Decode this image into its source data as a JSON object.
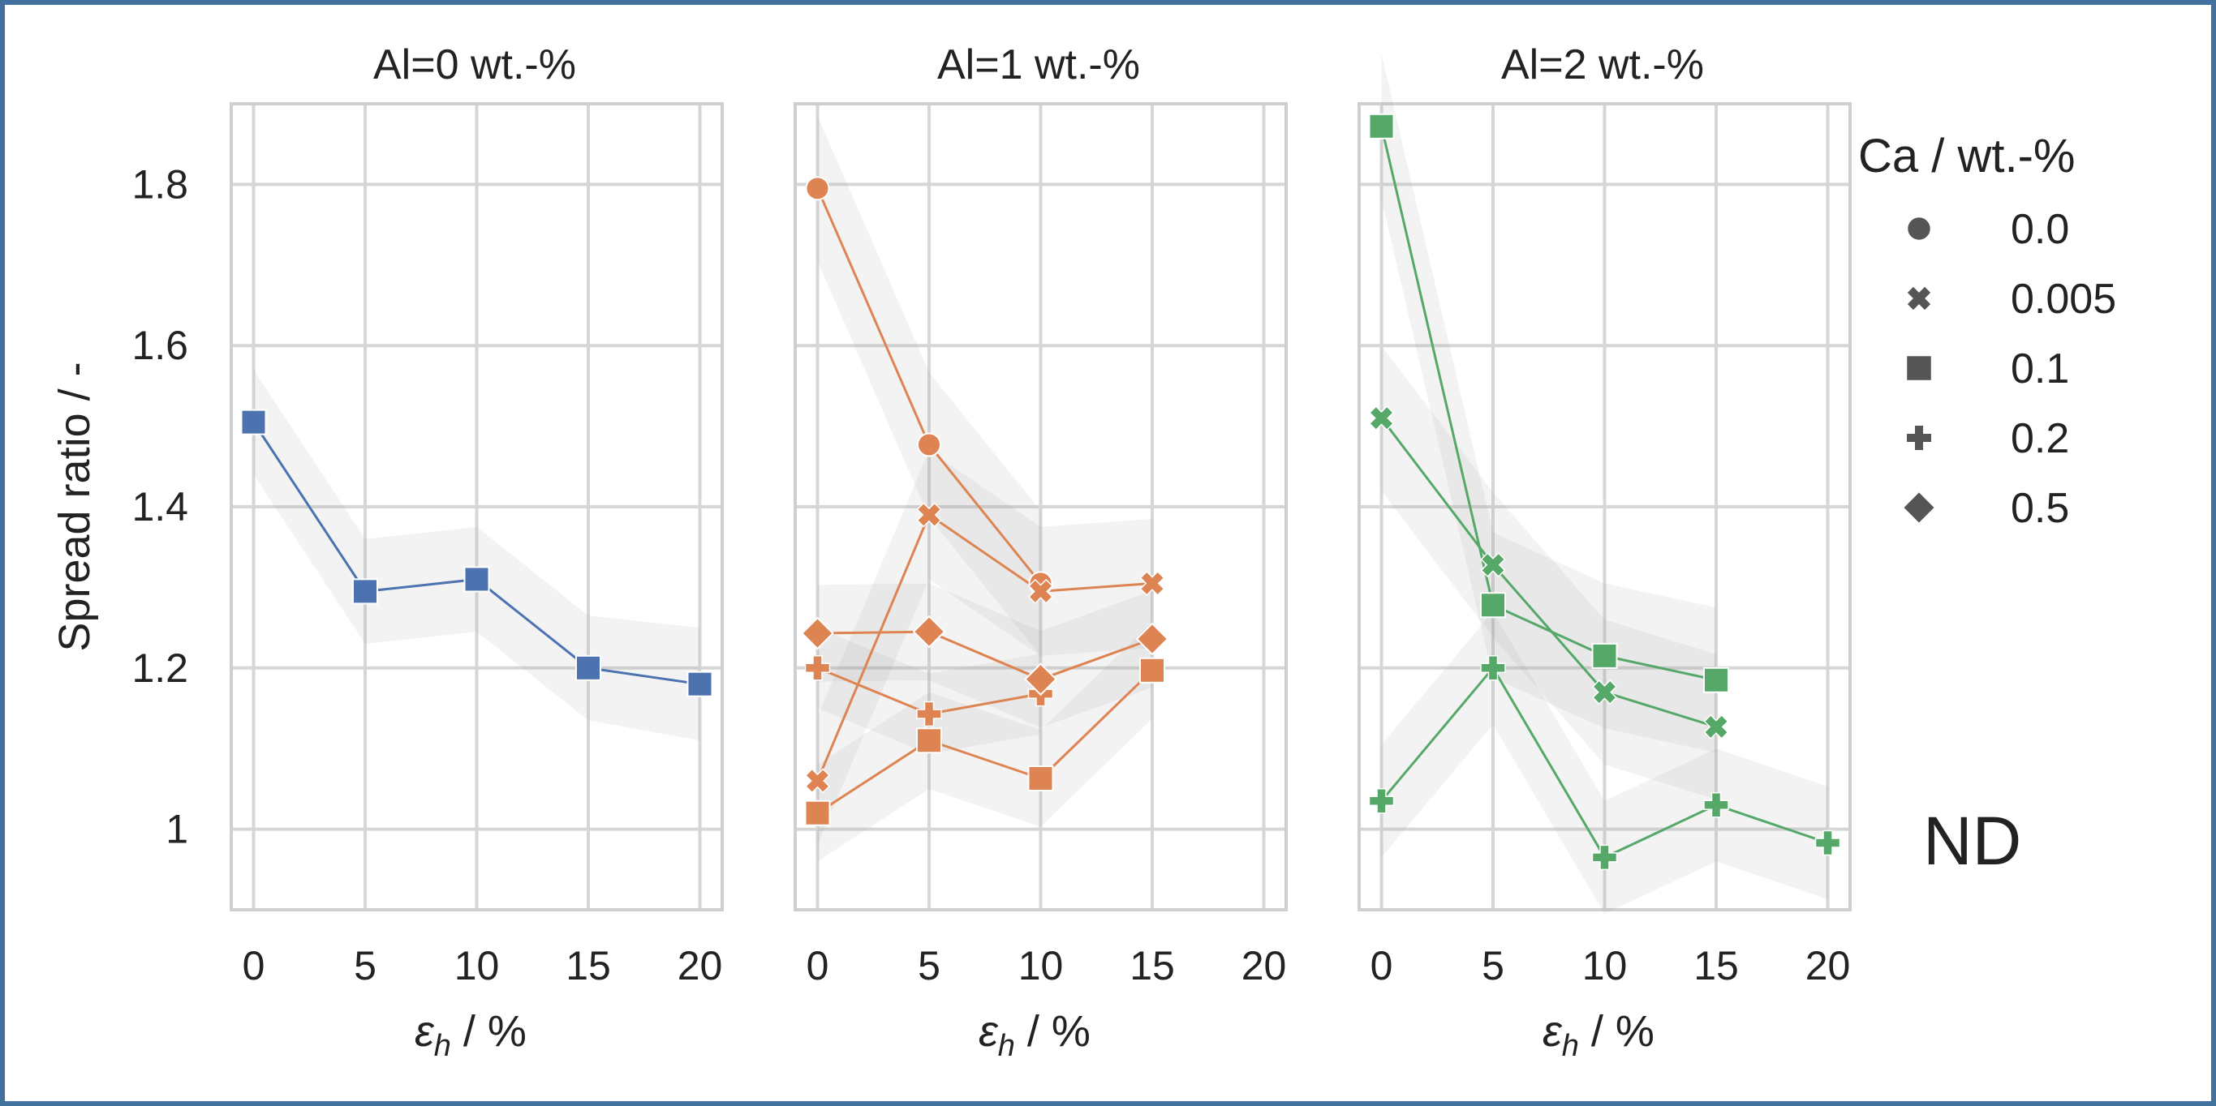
{
  "chart_data": {
    "type": "line",
    "ylabel": "Spread ratio / -",
    "xlabel": "ε_h / %",
    "xlabel_base": "ε",
    "xlabel_sub": "h",
    "xlabel_rest": " / %",
    "xlim": [
      -1,
      21
    ],
    "ylim": [
      0.9,
      1.9
    ],
    "xticks": [
      0,
      5,
      10,
      15,
      20
    ],
    "xtick_labels": [
      "0",
      "5",
      "10",
      "15",
      "20"
    ],
    "yticks": [
      1.0,
      1.2,
      1.4,
      1.6,
      1.8
    ],
    "ytick_labels": [
      "1",
      "1.2",
      "1.4",
      "1.6",
      "1.8"
    ],
    "legend": {
      "title": "Ca / wt.-%",
      "position": "right",
      "entries": [
        {
          "label": "0.0",
          "marker": "circle"
        },
        {
          "label": "0.005",
          "marker": "x"
        },
        {
          "label": "0.1",
          "marker": "square"
        },
        {
          "label": "0.2",
          "marker": "plus"
        },
        {
          "label": "0.5",
          "marker": "diamond"
        }
      ]
    },
    "annotation": "ND",
    "panels": [
      {
        "title": "Al=0 wt.-%",
        "color": "#4c72b0",
        "series": [
          {
            "ca": "0.1",
            "marker": "square",
            "x": [
              0,
              5,
              10,
              15,
              20
            ],
            "y": [
              1.505,
              1.295,
              1.31,
              1.2,
              1.18
            ],
            "band": [
              0.065,
              0.065,
              0.065,
              0.065,
              0.07
            ]
          }
        ]
      },
      {
        "title": "Al=1 wt.-%",
        "color": "#dd8452",
        "series": [
          {
            "ca": "0.0",
            "marker": "circle",
            "x": [
              0,
              5,
              10
            ],
            "y": [
              1.795,
              1.477,
              1.305
            ],
            "band": [
              0.09,
              0.09,
              0.09
            ]
          },
          {
            "ca": "0.005",
            "marker": "x",
            "x": [
              0,
              5,
              10,
              15
            ],
            "y": [
              1.06,
              1.39,
              1.295,
              1.305
            ],
            "band": [
              0.08,
              0.08,
              0.08,
              0.08
            ]
          },
          {
            "ca": "0.1",
            "marker": "square",
            "x": [
              0,
              5,
              10,
              15
            ],
            "y": [
              1.02,
              1.11,
              1.063,
              1.197
            ],
            "band": [
              0.06,
              0.06,
              0.06,
              0.06
            ]
          },
          {
            "ca": "0.2",
            "marker": "plus",
            "x": [
              0,
              5,
              10
            ],
            "y": [
              1.2,
              1.143,
              1.168
            ],
            "band": [
              0.05,
              0.05,
              0.05
            ]
          },
          {
            "ca": "0.5",
            "marker": "diamond",
            "x": [
              0,
              5,
              10,
              15
            ],
            "y": [
              1.243,
              1.245,
              1.186,
              1.236
            ],
            "band": [
              0.06,
              0.06,
              0.06,
              0.06
            ]
          }
        ]
      },
      {
        "title": "Al=2 wt.-%",
        "color": "#55a868",
        "series": [
          {
            "ca": "0.005",
            "marker": "x",
            "x": [
              0,
              5,
              10,
              15
            ],
            "y": [
              1.51,
              1.328,
              1.17,
              1.127
            ],
            "band": [
              0.09,
              0.09,
              0.09,
              0.09
            ]
          },
          {
            "ca": "0.1",
            "marker": "square",
            "x": [
              0,
              5,
              10,
              15
            ],
            "y": [
              1.872,
              1.278,
              1.215,
              1.185
            ],
            "band": [
              0.09,
              0.09,
              0.09,
              0.09
            ]
          },
          {
            "ca": "0.2",
            "marker": "plus",
            "x": [
              0,
              5,
              10,
              15,
              20
            ],
            "y": [
              1.035,
              1.2,
              0.965,
              1.03,
              0.983
            ],
            "band": [
              0.07,
              0.07,
              0.07,
              0.07,
              0.07
            ]
          }
        ]
      }
    ]
  }
}
